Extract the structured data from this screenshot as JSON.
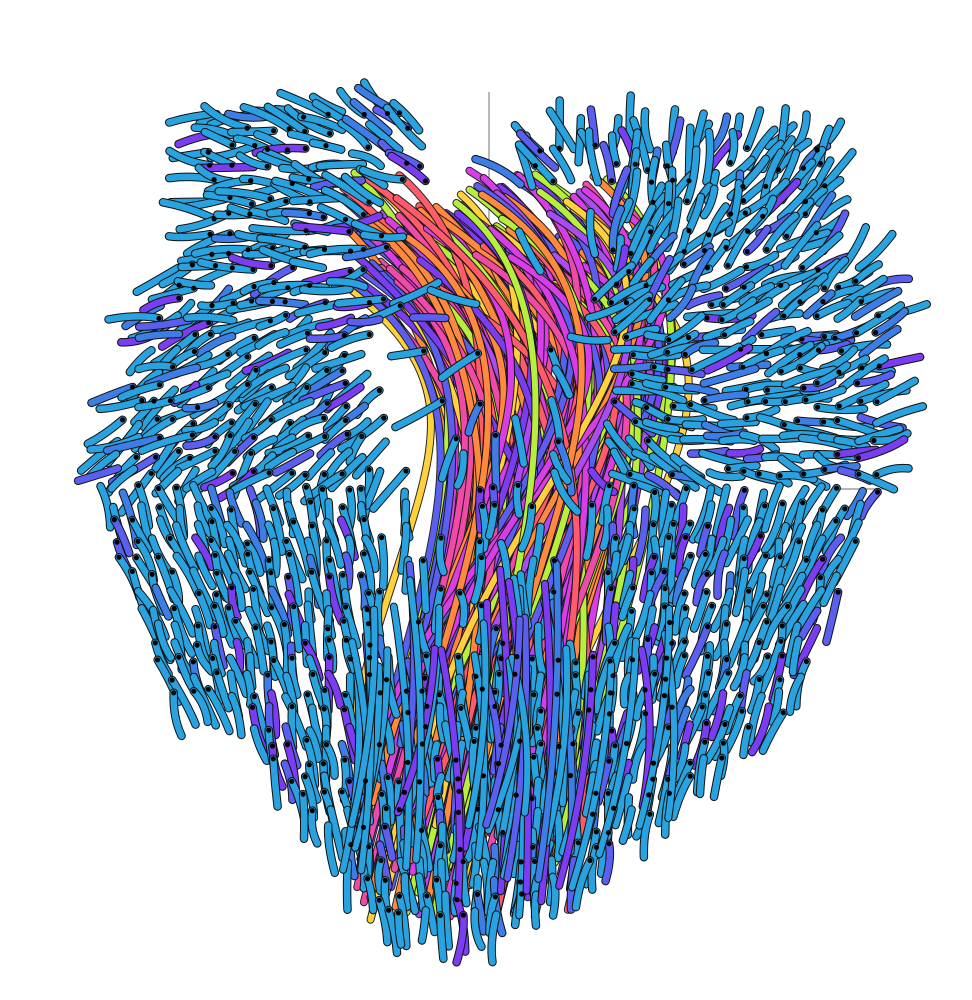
{
  "scene": {
    "background": "#ffffff",
    "axis_line_color": "#8a8a8a",
    "outline_color": "#111111",
    "tip_color": "#000000",
    "tube_palette": [
      "#29a3e0",
      "#3d7ee6",
      "#5b5ff0",
      "#7a3df2",
      "#a94cf0",
      "#d83ee6",
      "#f04aa8",
      "#ff5b6b",
      "#ff8a3d",
      "#ffd23d",
      "#b6f03d"
    ],
    "dominant_color": "#2fa9e6"
  }
}
